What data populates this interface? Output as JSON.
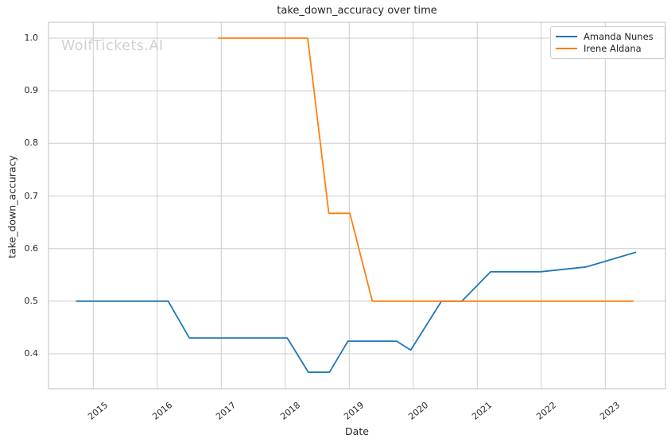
{
  "chart_data": {
    "type": "line",
    "title": "take_down_accuracy over time",
    "xlabel": "Date",
    "ylabel": "take_down_accuracy",
    "watermark": "WolfTickets.AI",
    "grid": true,
    "legend_position": "upper right",
    "xlim": [
      2014.3,
      2023.94
    ],
    "ylim": [
      0.3335,
      1.0302
    ],
    "x_ticks": [
      2015,
      2016,
      2017,
      2018,
      2019,
      2020,
      2021,
      2022,
      2023
    ],
    "y_ticks": [
      0.4,
      0.5,
      0.6,
      0.7,
      0.8,
      0.9,
      1.0
    ],
    "series": [
      {
        "name": "Amanda Nunes",
        "color": "#1f77b4",
        "points": [
          [
            2014.73,
            0.5
          ],
          [
            2016.17,
            0.5
          ],
          [
            2016.5,
            0.43
          ],
          [
            2018.03,
            0.43
          ],
          [
            2018.36,
            0.365
          ],
          [
            2018.69,
            0.365
          ],
          [
            2018.98,
            0.424
          ],
          [
            2019.74,
            0.424
          ],
          [
            2019.96,
            0.407
          ],
          [
            2020.44,
            0.5
          ],
          [
            2020.76,
            0.5
          ],
          [
            2021.21,
            0.556
          ],
          [
            2021.99,
            0.556
          ],
          [
            2022.7,
            0.565
          ],
          [
            2023.48,
            0.593
          ]
        ]
      },
      {
        "name": "Irene Aldana",
        "color": "#ff7f0e",
        "points": [
          [
            2016.95,
            1.0
          ],
          [
            2018.35,
            1.0
          ],
          [
            2018.68,
            0.667
          ],
          [
            2019.01,
            0.667
          ],
          [
            2019.36,
            0.5
          ],
          [
            2023.44,
            0.5
          ]
        ]
      }
    ]
  }
}
